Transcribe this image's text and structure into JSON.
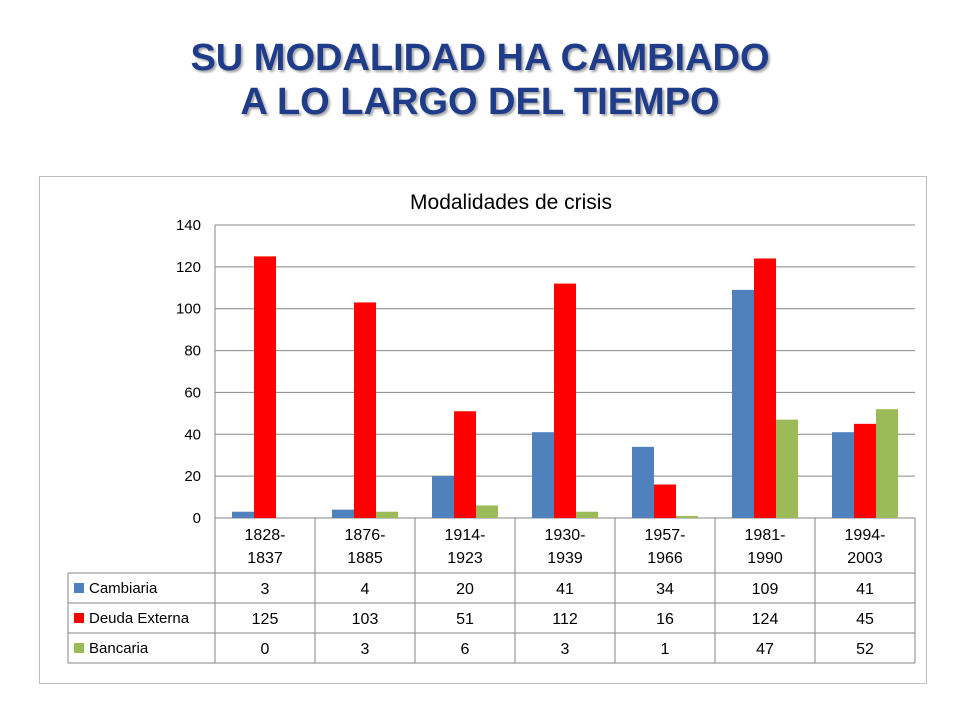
{
  "slide": {
    "title_line1": "SU MODALIDAD HA CAMBIADO",
    "title_line2": "A LO LARGO DEL TIEMPO"
  },
  "chart_data": {
    "type": "bar",
    "title": "Modalidades de crisis",
    "categories": [
      [
        "1828-",
        "1837"
      ],
      [
        "1876-",
        "1885"
      ],
      [
        "1914-",
        "1923"
      ],
      [
        "1930-",
        "1939"
      ],
      [
        "1957-",
        "1966"
      ],
      [
        "1981-",
        "1990"
      ],
      [
        "1994-",
        "2003"
      ]
    ],
    "series": [
      {
        "name": "Cambiaria",
        "color": "#4f81bd",
        "values": [
          3,
          4,
          20,
          41,
          34,
          109,
          41
        ]
      },
      {
        "name": "Deuda Externa",
        "color": "#ff0000",
        "values": [
          125,
          103,
          51,
          112,
          16,
          124,
          45
        ]
      },
      {
        "name": "Bancaria",
        "color": "#9bbb59",
        "values": [
          0,
          3,
          6,
          3,
          1,
          47,
          52
        ]
      }
    ],
    "ylim": [
      0,
      140
    ],
    "yticks": [
      0,
      20,
      40,
      60,
      80,
      100,
      120,
      140
    ],
    "grid": true,
    "legend": "data-table-left"
  }
}
